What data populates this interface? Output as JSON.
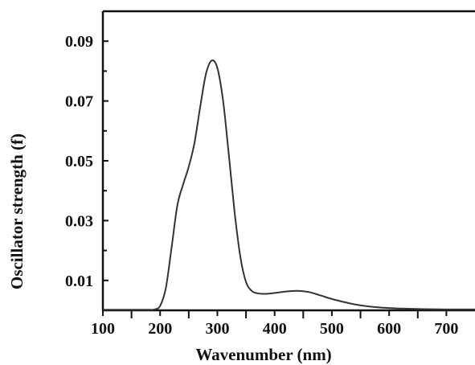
{
  "chart_data": {
    "type": "line",
    "title": "",
    "xlabel": "Wavenumber (nm)",
    "ylabel": "Oscillator  strength (f)",
    "xlim": [
      100,
      750
    ],
    "ylim": [
      0,
      0.1
    ],
    "x_ticks": [
      100,
      200,
      300,
      400,
      500,
      600,
      700
    ],
    "x_tick_labels": [
      "100",
      "200",
      "300",
      "400",
      "500",
      "600",
      "700"
    ],
    "y_ticks": [
      0.01,
      0.03,
      0.05,
      0.07,
      0.09
    ],
    "y_tick_labels": [
      "0.01",
      "0.03",
      "0.05",
      "0.07",
      "0.09"
    ],
    "grid": false,
    "legend": "none",
    "line_color": "#333333",
    "series": [
      {
        "x": [
          100,
          150,
          180,
          190,
          200,
          210,
          220,
          230,
          240,
          250,
          260,
          270,
          280,
          290,
          300,
          310,
          320,
          330,
          340,
          350,
          360,
          370,
          380,
          390,
          400,
          420,
          440,
          460,
          480,
          500,
          540,
          580,
          620,
          660,
          700,
          750
        ],
        "y": [
          0.0002,
          0.0002,
          0.0002,
          0.0003,
          0.0015,
          0.0075,
          0.021,
          0.035,
          0.042,
          0.048,
          0.056,
          0.068,
          0.079,
          0.0835,
          0.081,
          0.07,
          0.052,
          0.033,
          0.018,
          0.0095,
          0.0065,
          0.0057,
          0.0055,
          0.0056,
          0.0058,
          0.0063,
          0.0065,
          0.0061,
          0.005,
          0.0038,
          0.002,
          0.001,
          0.0006,
          0.0004,
          0.0003,
          0.0003
        ]
      }
    ]
  }
}
